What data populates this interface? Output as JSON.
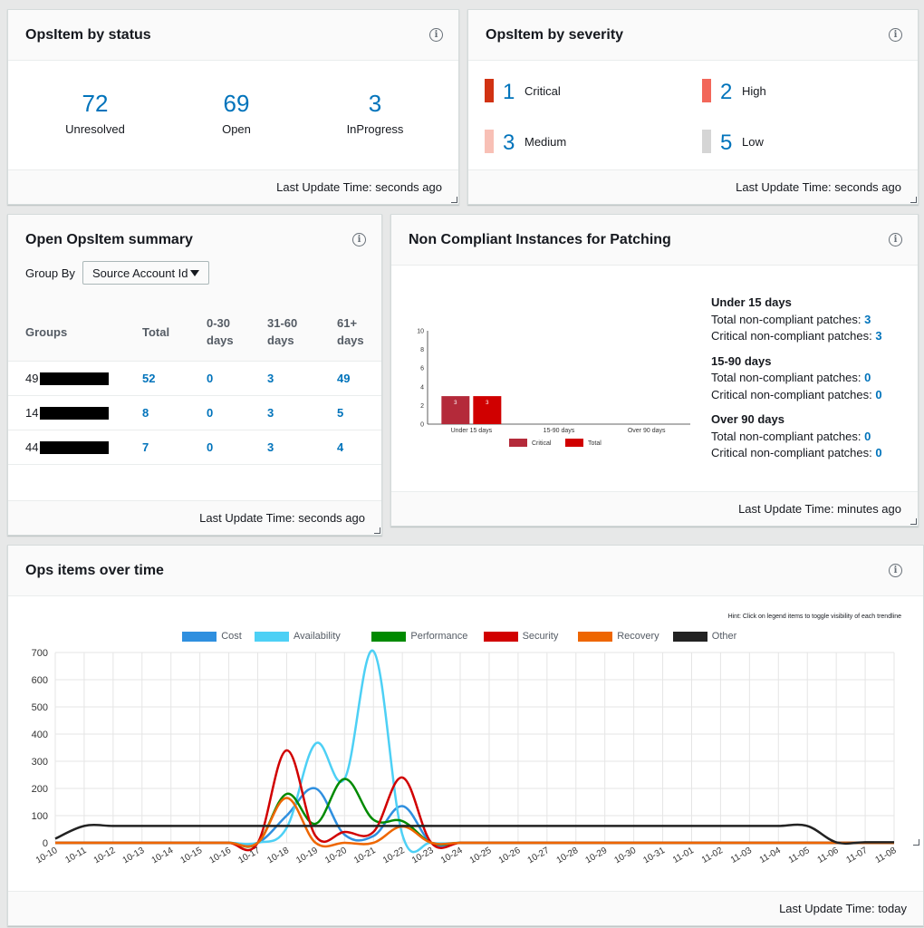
{
  "status_widget": {
    "title": "OpsItem by status",
    "items": [
      {
        "value": "72",
        "label": "Unresolved"
      },
      {
        "value": "69",
        "label": "Open"
      },
      {
        "value": "3",
        "label": "InProgress"
      }
    ],
    "footer": "Last Update Time: seconds ago"
  },
  "severity_widget": {
    "title": "OpsItem by severity",
    "items": [
      {
        "value": "1",
        "label": "Critical",
        "color": "#d13212"
      },
      {
        "value": "2",
        "label": "High",
        "color": "#f2675a"
      },
      {
        "value": "3",
        "label": "Medium",
        "color": "#f8c0b6"
      },
      {
        "value": "5",
        "label": "Low",
        "color": "#d5d5d5"
      }
    ],
    "footer": "Last Update Time: seconds ago"
  },
  "summary_widget": {
    "title": "Open OpsItem summary",
    "group_by_label": "Group By",
    "group_by_value": "Source Account Id",
    "columns": [
      "Groups",
      "Total",
      "0-30 days",
      "31-60 days",
      "61+ days"
    ],
    "rows": [
      {
        "group": "49",
        "total": "52",
        "d30": "0",
        "d60": "3",
        "d61": "49"
      },
      {
        "group": "14",
        "total": "8",
        "d30": "0",
        "d60": "3",
        "d61": "5"
      },
      {
        "group": "44",
        "total": "7",
        "d30": "0",
        "d60": "3",
        "d61": "4"
      }
    ],
    "footer": "Last Update Time: seconds ago"
  },
  "patch_widget": {
    "title": "Non Compliant Instances for Patching",
    "groups": [
      {
        "heading": "Under 15 days",
        "total_label": "Total non-compliant patches:",
        "total": "3",
        "critical_label": "Critical non-compliant patches:",
        "critical": "3"
      },
      {
        "heading": "15-90 days",
        "total_label": "Total non-compliant patches:",
        "total": "0",
        "critical_label": "Critical non-compliant patches:",
        "critical": "0"
      },
      {
        "heading": "Over 90 days",
        "total_label": "Total non-compliant patches:",
        "total": "0",
        "critical_label": "Critical non-compliant patches:",
        "critical": "0"
      }
    ],
    "footer": "Last Update Time: minutes ago"
  },
  "ops_widget": {
    "title": "Ops items over time",
    "hint": "Hint: Click on legend items to toggle visibility of each trendline",
    "footer": "Last Update Time: today"
  },
  "chart_data": [
    {
      "type": "bar",
      "categories": [
        "Under 15 days",
        "15-90 days",
        "Over 90 days"
      ],
      "series": [
        {
          "name": "Critical",
          "color": "#b42a3a",
          "values": [
            3,
            0,
            0
          ]
        },
        {
          "name": "Total",
          "color": "#d00000",
          "values": [
            3,
            0,
            0
          ]
        }
      ],
      "ylim": [
        0,
        10
      ],
      "yticks": [
        0,
        2,
        4,
        6,
        8,
        10
      ],
      "legend": "bottom"
    },
    {
      "type": "line",
      "x": [
        "10-10",
        "10-11",
        "10-12",
        "10-13",
        "10-14",
        "10-15",
        "10-16",
        "10-17",
        "10-18",
        "10-19",
        "10-20",
        "10-21",
        "10-22",
        "10-23",
        "10-24",
        "10-25",
        "10-26",
        "10-27",
        "10-28",
        "10-29",
        "10-30",
        "10-31",
        "11-01",
        "11-02",
        "11-03",
        "11-04",
        "11-05",
        "11-06",
        "11-07",
        "11-08"
      ],
      "ylim": [
        0,
        700
      ],
      "yticks": [
        0,
        100,
        200,
        300,
        400,
        500,
        600,
        700
      ],
      "grid": true,
      "legend": "top",
      "series": [
        {
          "name": "Cost",
          "color": "#2f8fdf",
          "values": [
            0,
            0,
            0,
            0,
            0,
            0,
            0,
            0,
            100,
            200,
            30,
            25,
            135,
            0,
            0,
            0,
            0,
            0,
            0,
            0,
            0,
            0,
            0,
            0,
            0,
            0,
            0,
            0,
            0,
            0
          ]
        },
        {
          "name": "Availability",
          "color": "#4dd0f5",
          "values": [
            0,
            0,
            0,
            0,
            0,
            0,
            0,
            0,
            55,
            365,
            235,
            705,
            30,
            0,
            0,
            0,
            0,
            0,
            0,
            0,
            0,
            0,
            0,
            0,
            0,
            0,
            0,
            0,
            0,
            0
          ]
        },
        {
          "name": "Performance",
          "color": "#008a00",
          "values": [
            0,
            0,
            0,
            0,
            0,
            0,
            0,
            0,
            180,
            70,
            235,
            85,
            80,
            0,
            0,
            0,
            0,
            0,
            0,
            0,
            0,
            0,
            0,
            0,
            0,
            0,
            0,
            0,
            0,
            0
          ]
        },
        {
          "name": "Security",
          "color": "#d10000",
          "values": [
            0,
            0,
            0,
            0,
            0,
            0,
            0,
            0,
            340,
            25,
            40,
            40,
            240,
            0,
            0,
            0,
            0,
            0,
            0,
            0,
            0,
            0,
            0,
            0,
            0,
            0,
            0,
            0,
            0,
            0
          ]
        },
        {
          "name": "Recovery",
          "color": "#ee6600",
          "values": [
            0,
            0,
            0,
            0,
            0,
            0,
            0,
            0,
            165,
            0,
            0,
            0,
            60,
            0,
            0,
            0,
            0,
            0,
            0,
            0,
            0,
            0,
            0,
            0,
            0,
            0,
            0,
            0,
            0,
            0
          ]
        },
        {
          "name": "Other",
          "color": "#222222",
          "values": [
            15,
            62,
            62,
            62,
            62,
            62,
            62,
            62,
            62,
            62,
            62,
            62,
            62,
            62,
            62,
            62,
            62,
            62,
            62,
            62,
            62,
            62,
            62,
            62,
            62,
            62,
            62,
            2,
            2,
            2
          ]
        }
      ]
    }
  ]
}
